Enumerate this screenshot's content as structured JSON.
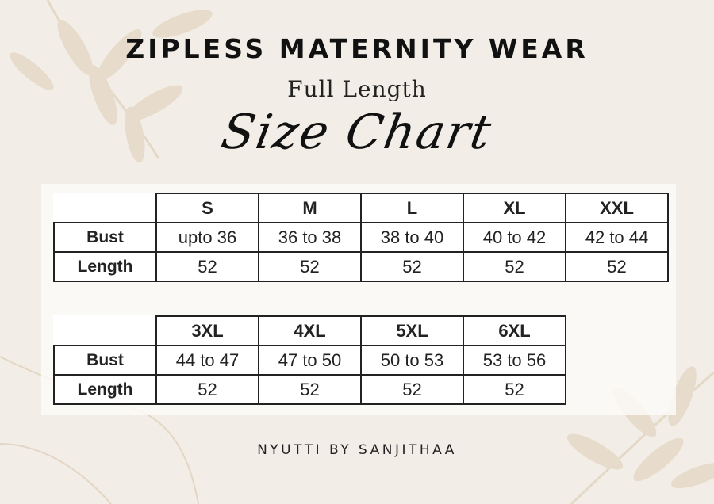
{
  "header": {
    "title": "ZIPLESS MATERNITY WEAR",
    "subtitle": "Full Length",
    "script_title": "Size Chart"
  },
  "tables": [
    {
      "sizes": [
        "S",
        "M",
        "L",
        "XL",
        "XXL"
      ],
      "rows": [
        {
          "label": "Bust",
          "values": [
            "upto 36",
            "36 to 38",
            "38 to 40",
            "40 to 42",
            "42 to 44"
          ]
        },
        {
          "label": "Length",
          "values": [
            "52",
            "52",
            "52",
            "52",
            "52"
          ]
        }
      ]
    },
    {
      "sizes": [
        "3XL",
        "4XL",
        "5XL",
        "6XL"
      ],
      "rows": [
        {
          "label": "Bust",
          "values": [
            "44 to 47",
            "47 to 50",
            "50 to 53",
            "53 to 56"
          ]
        },
        {
          "label": "Length",
          "values": [
            "52",
            "52",
            "52",
            "52"
          ]
        }
      ]
    }
  ],
  "footer": {
    "brand": "NYUTTI BY SANJITHAA"
  },
  "colors": {
    "background": "#f2eee7",
    "leaf": "#e2d6c4",
    "text": "#111111"
  }
}
